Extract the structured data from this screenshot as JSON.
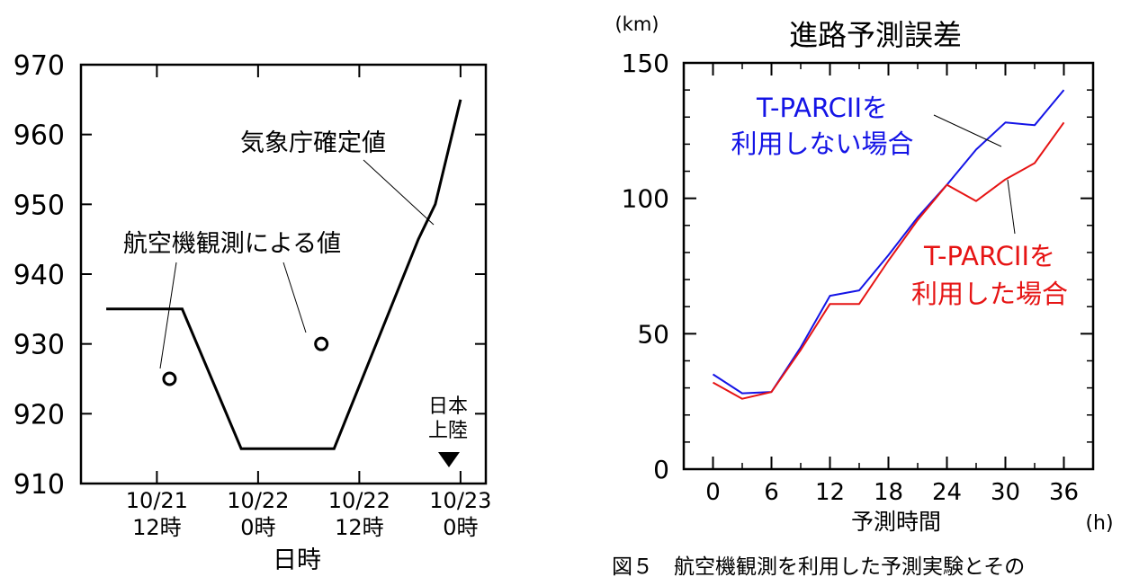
{
  "chart_data": [
    {
      "type": "line",
      "title": "",
      "xlabel": "日時",
      "ylabel": "",
      "ylim": [
        910,
        970
      ],
      "yticks": [
        910,
        920,
        930,
        940,
        950,
        960,
        970
      ],
      "x_tick_labels": [
        {
          "date": "10/21",
          "time": "12時"
        },
        {
          "date": "10/22",
          "time": "0時"
        },
        {
          "date": "10/22",
          "time": "12時"
        },
        {
          "date": "10/23",
          "time": "0時"
        }
      ],
      "series": [
        {
          "name": "気象庁確定値",
          "points": [
            [
              -6,
              935
            ],
            [
              3,
              935
            ],
            [
              10,
              915
            ],
            [
              21,
              915
            ],
            [
              31,
              945
            ],
            [
              33,
              950
            ],
            [
              36,
              965
            ]
          ]
        },
        {
          "name": "航空機観測による値",
          "points": [
            [
              1.5,
              925
            ],
            [
              19.5,
              930
            ]
          ]
        }
      ],
      "annotation": {
        "line1": "日本",
        "line2": "上陸",
        "symbol": "▼",
        "x": 34
      }
    },
    {
      "type": "line",
      "title": "進路予測誤差",
      "xlabel": "予測時間",
      "xunit": "(h)",
      "yunit": "(km)",
      "xlim": [
        -3,
        39
      ],
      "ylim": [
        0,
        150
      ],
      "xticks": [
        0,
        6,
        12,
        18,
        24,
        30,
        36
      ],
      "yticks": [
        0,
        50,
        100,
        150
      ],
      "grid": false,
      "series": [
        {
          "name_line1": "T-PARCIIを",
          "name_line2": "利用しない場合",
          "color": "#1414e6",
          "x": [
            0,
            3,
            6,
            9,
            12,
            15,
            18,
            21,
            24,
            27,
            30,
            33,
            36
          ],
          "values": [
            35,
            28,
            28.5,
            45,
            64,
            66,
            79,
            93,
            105,
            118,
            128,
            127,
            140
          ]
        },
        {
          "name_line1": "T-PARCIIを",
          "name_line2": "利用した場合",
          "color": "#e61414",
          "x": [
            0,
            3,
            6,
            9,
            12,
            15,
            18,
            21,
            24,
            27,
            30,
            33,
            36
          ],
          "values": [
            32,
            26,
            28.5,
            44,
            61,
            61,
            77,
            92,
            105,
            99,
            107,
            113,
            128
          ]
        }
      ]
    }
  ],
  "caption": "図５　航空機観測を利用した予測実験とその"
}
